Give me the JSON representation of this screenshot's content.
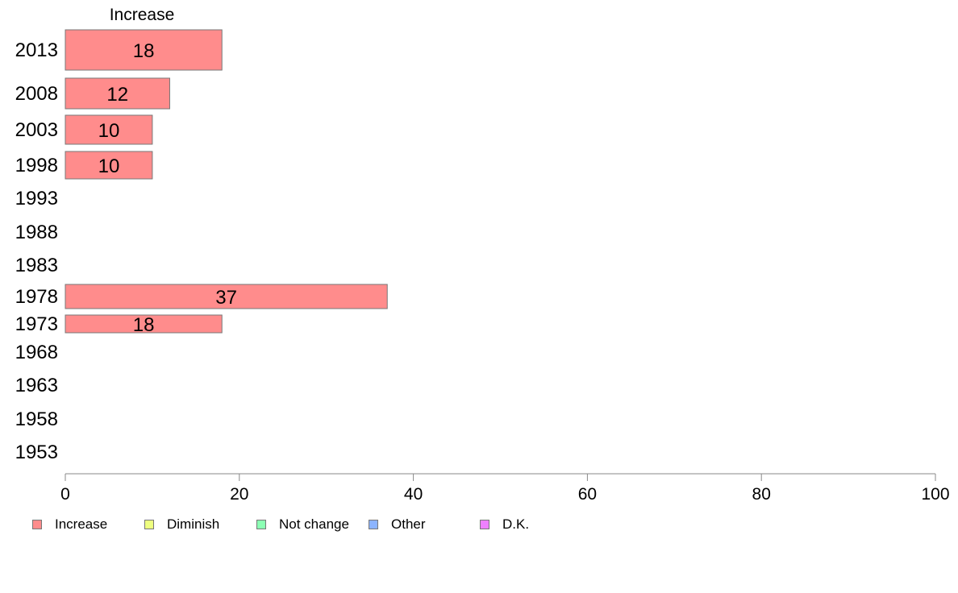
{
  "chart_data": {
    "type": "bar",
    "orientation": "horizontal",
    "stacked": true,
    "title": "Increase",
    "categories": [
      "2013",
      "2008",
      "2003",
      "1998",
      "1993",
      "1988",
      "1983",
      "1978",
      "1973",
      "1968",
      "1963",
      "1958",
      "1953"
    ],
    "series": [
      {
        "name": "Increase",
        "color": "#ff8c8c",
        "values": [
          18,
          12,
          10,
          10,
          null,
          null,
          null,
          37,
          18,
          null,
          null,
          null,
          null
        ]
      },
      {
        "name": "Diminish",
        "color": "#eeff80",
        "values": [
          null,
          null,
          null,
          null,
          null,
          null,
          null,
          null,
          null,
          null,
          null,
          null,
          null
        ]
      },
      {
        "name": "Not change",
        "color": "#8cffb4",
        "values": [
          null,
          null,
          null,
          null,
          null,
          null,
          null,
          null,
          null,
          null,
          null,
          null,
          null
        ]
      },
      {
        "name": "Other",
        "color": "#8cb4ff",
        "values": [
          null,
          null,
          null,
          null,
          null,
          null,
          null,
          null,
          null,
          null,
          null,
          null,
          null
        ]
      },
      {
        "name": "D.K.",
        "color": "#ee80ff",
        "values": [
          null,
          null,
          null,
          null,
          null,
          null,
          null,
          null,
          null,
          null,
          null,
          null,
          null
        ]
      }
    ],
    "data_labels": [
      "18",
      "12",
      "10",
      "10",
      "",
      "",
      "",
      "37",
      "18",
      "",
      "",
      "",
      ""
    ],
    "xlim": [
      0,
      100
    ],
    "xticks": [
      0,
      20,
      40,
      60,
      80,
      100
    ],
    "xtick_labels": [
      "0",
      "20",
      "40",
      "60",
      "80",
      "100"
    ],
    "grid": false,
    "legend_position": "bottom-left"
  },
  "legend": {
    "items": [
      {
        "label": "Increase",
        "color": "#ff8c8c"
      },
      {
        "label": "Diminish",
        "color": "#eeff80"
      },
      {
        "label": "Not change",
        "color": "#8cffb4"
      },
      {
        "label": "Other",
        "color": "#8cb4ff"
      },
      {
        "label": "D.K.",
        "color": "#ee80ff"
      }
    ]
  }
}
